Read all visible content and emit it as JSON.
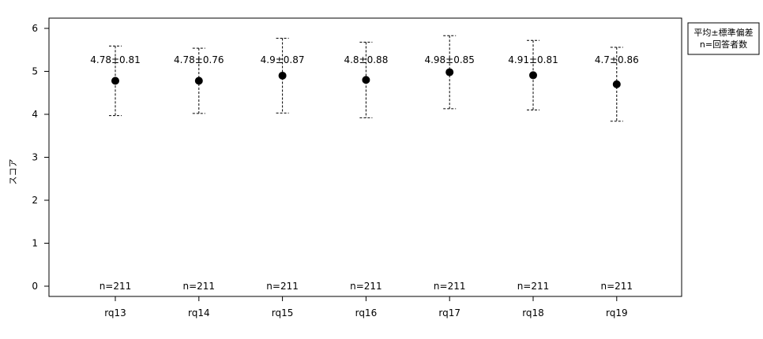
{
  "chart_data": {
    "type": "scatter",
    "ylabel": "スコア",
    "ylim": [
      0,
      6
    ],
    "yticks": [
      0,
      1,
      2,
      3,
      4,
      5,
      6
    ],
    "categories": [
      "rq13",
      "rq14",
      "rq15",
      "rq16",
      "rq17",
      "rq18",
      "rq19"
    ],
    "mean": [
      4.78,
      4.78,
      4.9,
      4.8,
      4.98,
      4.91,
      4.7
    ],
    "sd": [
      0.81,
      0.76,
      0.87,
      0.88,
      0.85,
      0.81,
      0.86
    ],
    "value_labels": [
      "4.78±0.81",
      "4.78±0.76",
      "4.9±0.87",
      "4.8±0.88",
      "4.98±0.85",
      "4.91±0.81",
      "4.7±0.86"
    ],
    "n_labels": [
      "n=211",
      "n=211",
      "n=211",
      "n=211",
      "n=211",
      "n=211",
      "n=211"
    ],
    "legend": [
      "平均±標準偏差",
      "n=回答者数"
    ],
    "legend_position": "top-right",
    "grid": false
  }
}
